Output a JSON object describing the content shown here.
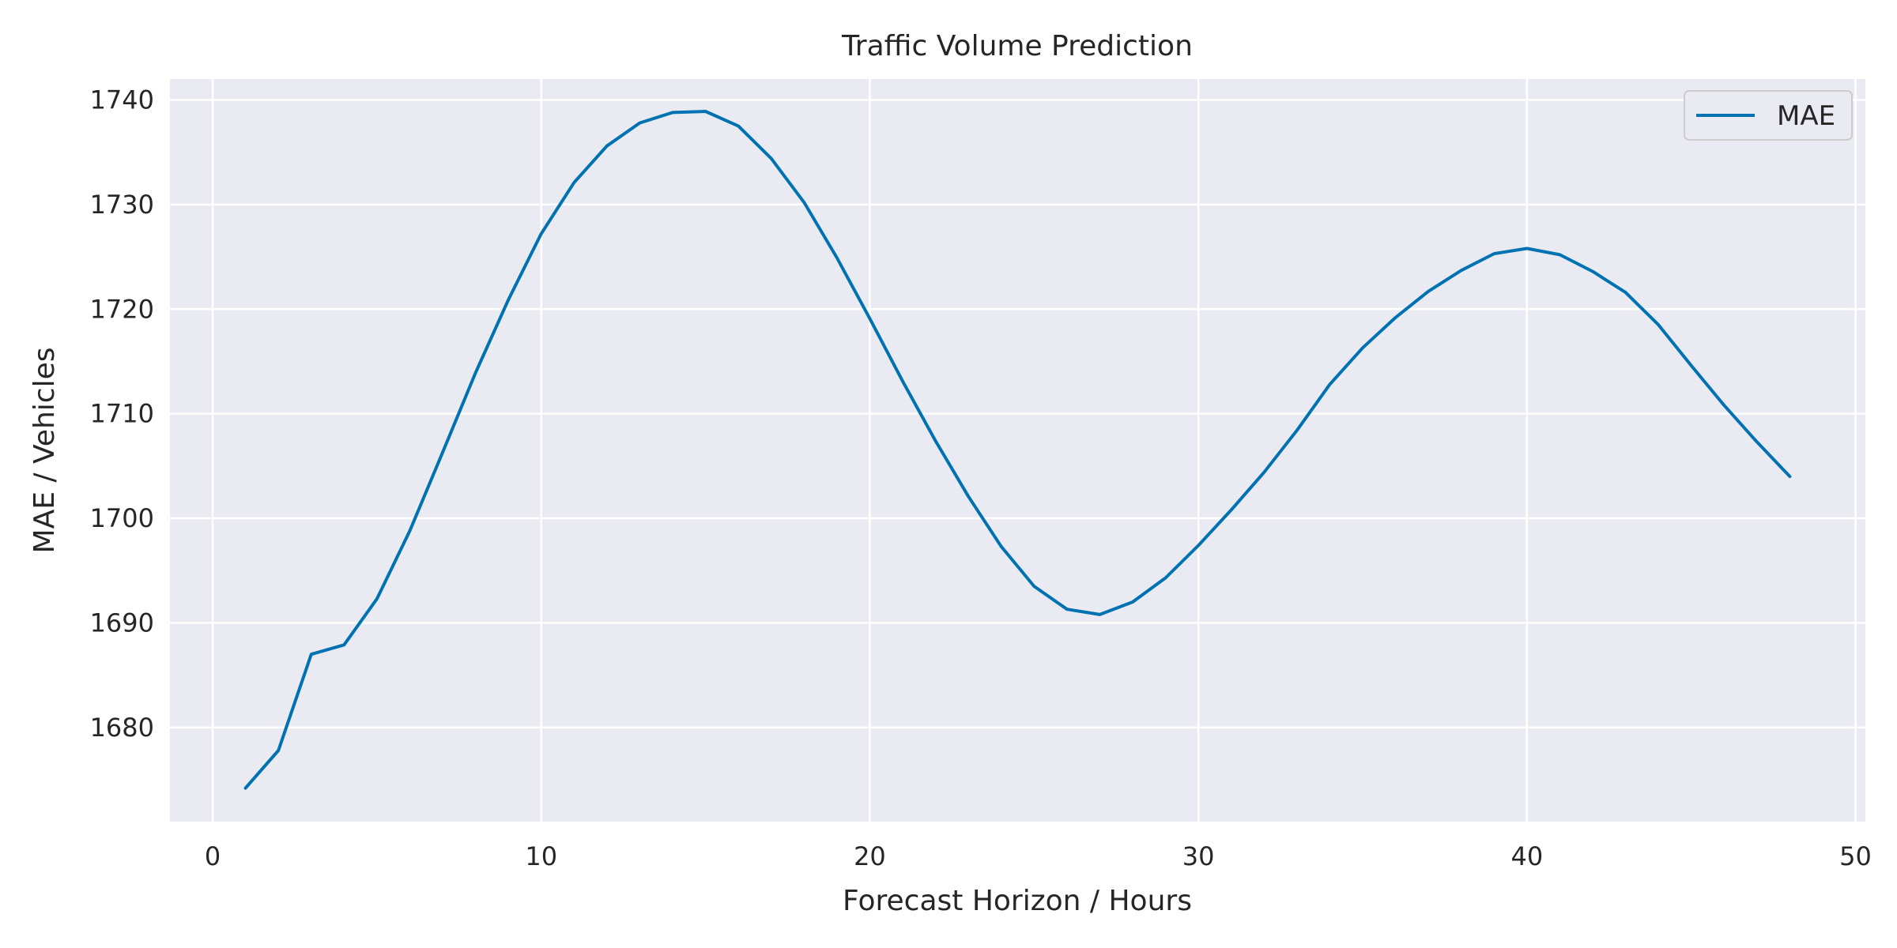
{
  "chart_data": {
    "type": "line",
    "title": "Traffic Volume Prediction",
    "xlabel": "Forecast Horizon / Hours",
    "ylabel": "MAE / Vehicles",
    "xlim": [
      -1.3,
      50.3
    ],
    "ylim": [
      1671.0,
      1742.0
    ],
    "xticks": [
      0,
      10,
      20,
      30,
      40,
      50
    ],
    "yticks": [
      1680,
      1690,
      1700,
      1710,
      1720,
      1730,
      1740
    ],
    "grid": true,
    "legend_position": "top-right",
    "colors": {
      "background": "#eaeaf2",
      "grid": "#ffffff",
      "line": "#0072b2"
    },
    "series": [
      {
        "name": "MAE",
        "x": [
          1,
          2,
          3,
          4,
          5,
          6,
          7,
          8,
          9,
          10,
          11,
          12,
          13,
          14,
          15,
          16,
          17,
          18,
          19,
          20,
          21,
          22,
          23,
          24,
          25,
          26,
          27,
          28,
          29,
          30,
          31,
          32,
          33,
          34,
          35,
          36,
          37,
          38,
          39,
          40,
          41,
          42,
          43,
          44,
          45,
          46,
          47,
          48
        ],
        "values": [
          1674.2,
          1677.8,
          1687.0,
          1687.9,
          1692.3,
          1698.8,
          1706.3,
          1713.9,
          1720.9,
          1727.2,
          1732.1,
          1735.6,
          1737.8,
          1738.8,
          1738.9,
          1737.5,
          1734.4,
          1730.2,
          1724.9,
          1719.1,
          1713.1,
          1707.4,
          1702.1,
          1697.3,
          1693.5,
          1691.3,
          1690.8,
          1692.0,
          1694.3,
          1697.4,
          1700.8,
          1704.4,
          1708.4,
          1712.8,
          1716.3,
          1719.2,
          1721.7,
          1723.7,
          1725.3,
          1725.8,
          1725.2,
          1723.6,
          1721.6,
          1718.5,
          1714.6,
          1710.8,
          1707.3,
          1704.0
        ]
      }
    ]
  }
}
